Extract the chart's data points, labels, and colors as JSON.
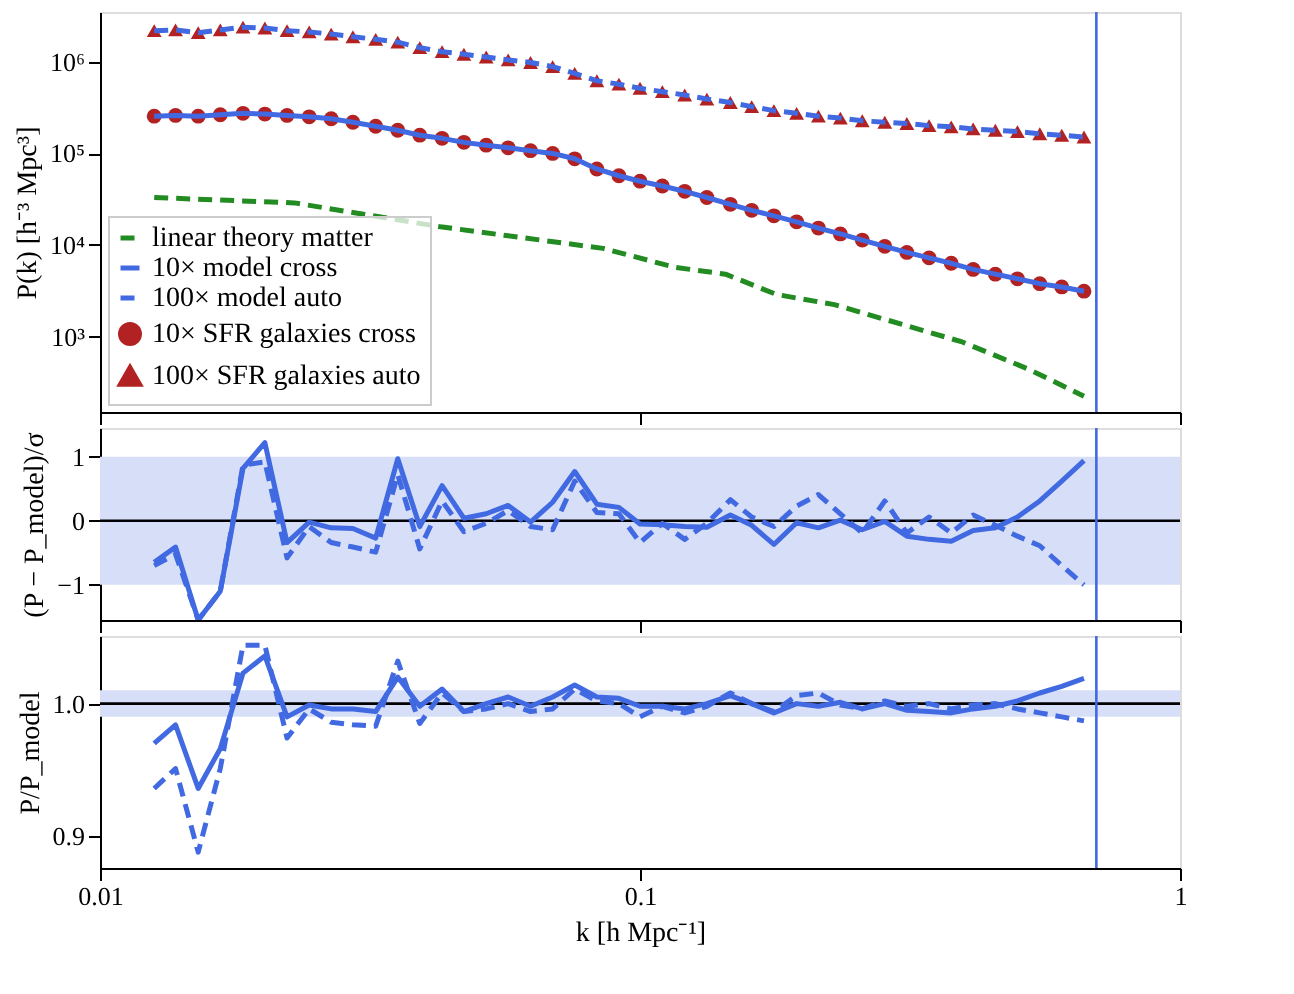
{
  "chart_data": [
    {
      "type": "line",
      "ylabel": "P(k) [h⁻³ Mpc³]",
      "log": "xy",
      "legend": "bottom left",
      "tick_labels": "y",
      "xlim": [
        0.01,
        1
      ],
      "xticks": [
        0.01,
        0.1,
        1
      ],
      "ylim": [
        150,
        3500000
      ],
      "yticks": [
        {
          "value": 1000,
          "label": "10³"
        },
        {
          "value": 10000,
          "label": "10⁴"
        },
        {
          "value": 100000,
          "label": "10⁵"
        },
        {
          "value": 1000000,
          "label": "10⁶"
        }
      ],
      "x": [
        0.0126,
        0.0138,
        0.0152,
        0.0167,
        0.0184,
        0.0202,
        0.0222,
        0.0244,
        0.0268,
        0.0294,
        0.0324,
        0.0356,
        0.0391,
        0.043,
        0.0472,
        0.0519,
        0.057,
        0.0627,
        0.0689,
        0.0757,
        0.0832,
        0.0914,
        0.1,
        0.11,
        0.121,
        0.133,
        0.147,
        0.161,
        0.177,
        0.195,
        0.214,
        0.235,
        0.258,
        0.284,
        0.312,
        0.343,
        0.377,
        0.414,
        0.455,
        0.5,
        0.55,
        0.604,
        0.664
      ],
      "series": [
        {
          "name": "linear theory matter",
          "color": "#228b22",
          "line_style": "dashed",
          "x": [
            0.0126,
            0.0229,
            0.0427,
            0.0855,
            0.116,
            0.144,
            0.179,
            0.229,
            0.308,
            0.395,
            0.524,
            0.664
          ],
          "values": [
            33000,
            28800,
            15800,
            9180,
            5700,
            4800,
            2880,
            2230,
            1340,
            873,
            441,
            223
          ]
        },
        {
          "name": "10× model cross",
          "color": "#4169e1",
          "line_style": "solid",
          "values": [
            255000.0,
            260000.0,
            255000.0,
            264000.0,
            274000.0,
            269000.0,
            260000.0,
            251000.0,
            239000.0,
            219000.0,
            198000.0,
            179000.0,
            158000.0,
            146000.0,
            132000.0,
            123000.0,
            115000.0,
            107000.0,
            100000.0,
            87300.0,
            67600.0,
            57000.0,
            49700.0,
            44100.0,
            38500.0,
            33000.0,
            27800.0,
            23900.0,
            20800.0,
            17900.0,
            15300.0,
            13200.0,
            11300.0,
            9660.0,
            8300.0,
            7230.0,
            6310.0,
            5410.0,
            4800.0,
            4270.0,
            3780.0,
            3480.0,
            3130.0
          ]
        },
        {
          "name": "100× model auto",
          "color": "#4169e1",
          "line_style": "dashed",
          "values": [
            2190000.0,
            2230000.0,
            2080000.0,
            2230000.0,
            2390000.0,
            2340000.0,
            2190000.0,
            2120000.0,
            2010000.0,
            1880000.0,
            1760000.0,
            1640000.0,
            1430000.0,
            1290000.0,
            1210000.0,
            1130000.0,
            1050000.0,
            984000.0,
            887000.0,
            748000.0,
            621000.0,
            570000.0,
            514000.0,
            472000.0,
            434000.0,
            392000.0,
            360000.0,
            324000.0,
            293000.0,
            274000.0,
            255000.0,
            243000.0,
            227000.0,
            219000.0,
            212000.0,
            201000.0,
            195000.0,
            185000.0,
            179000.0,
            173000.0,
            164000.0,
            158000.0,
            151000.0
          ]
        },
        {
          "name": "10× SFR galaxies cross",
          "type": "scatter",
          "marker": "circle",
          "color": "#b22222",
          "values": [
            255000.0,
            260000.0,
            255000.0,
            264000.0,
            274000.0,
            269000.0,
            260000.0,
            251000.0,
            239000.0,
            219000.0,
            198000.0,
            179000.0,
            158000.0,
            146000.0,
            132000.0,
            123000.0,
            115000.0,
            107000.0,
            100000.0,
            87300.0,
            67600.0,
            57000.0,
            49700.0,
            44100.0,
            38500.0,
            33000.0,
            27800.0,
            23900.0,
            20800.0,
            17900.0,
            15300.0,
            13200.0,
            11300.0,
            9660.0,
            8300.0,
            7230.0,
            6310.0,
            5410.0,
            4800.0,
            4270.0,
            3780.0,
            3480.0,
            3130.0
          ]
        },
        {
          "name": "100× SFR galaxies auto",
          "type": "scatter",
          "marker": "triangle",
          "color": "#b22222",
          "values": [
            2190000.0,
            2230000.0,
            2080000.0,
            2230000.0,
            2390000.0,
            2340000.0,
            2190000.0,
            2120000.0,
            2010000.0,
            1880000.0,
            1760000.0,
            1640000.0,
            1430000.0,
            1290000.0,
            1210000.0,
            1130000.0,
            1050000.0,
            984000.0,
            887000.0,
            748000.0,
            621000.0,
            570000.0,
            514000.0,
            472000.0,
            434000.0,
            392000.0,
            360000.0,
            324000.0,
            293000.0,
            274000.0,
            255000.0,
            243000.0,
            227000.0,
            219000.0,
            212000.0,
            201000.0,
            195000.0,
            185000.0,
            179000.0,
            173000.0,
            164000.0,
            158000.0,
            151000.0
          ]
        }
      ],
      "ref_lines": [
        {
          "axis": "x",
          "value": 0.7,
          "color": "#4169e1"
        }
      ]
    },
    {
      "type": "line",
      "ylabel": "(P − P_model)/σ",
      "log": "x",
      "tick_labels": "y",
      "xlim": [
        0.01,
        1
      ],
      "xticks": [
        0.01,
        0.1,
        1
      ],
      "ylim": [
        -1.55,
        1.45
      ],
      "yticks": [
        {
          "value": -1,
          "label": "−1"
        },
        0,
        1
      ],
      "x": [
        0.0126,
        0.0138,
        0.0152,
        0.0167,
        0.0184,
        0.0202,
        0.0222,
        0.0244,
        0.0268,
        0.0294,
        0.0324,
        0.0356,
        0.0391,
        0.043,
        0.0472,
        0.0519,
        0.057,
        0.0627,
        0.0689,
        0.0757,
        0.0832,
        0.0914,
        0.1,
        0.11,
        0.121,
        0.133,
        0.147,
        0.161,
        0.177,
        0.195,
        0.214,
        0.235,
        0.258,
        0.284,
        0.312,
        0.343,
        0.377,
        0.414,
        0.455,
        0.5,
        0.55,
        0.604,
        0.664
      ],
      "series": [
        {
          "color": "#4169e1",
          "line_style": "solid",
          "values": [
            -0.65,
            -0.41,
            -1.55,
            -1.1,
            0.82,
            1.22,
            -0.34,
            -0.02,
            -0.11,
            -0.12,
            -0.27,
            0.97,
            -0.09,
            0.55,
            0.04,
            0.11,
            0.24,
            -0.02,
            0.29,
            0.77,
            0.26,
            0.21,
            -0.05,
            -0.06,
            -0.09,
            -0.1,
            0.09,
            -0.07,
            -0.37,
            -0.03,
            -0.11,
            0.01,
            -0.14,
            -0.01,
            -0.24,
            -0.29,
            -0.32,
            -0.15,
            -0.11,
            0.06,
            0.31,
            0.62,
            0.94
          ]
        },
        {
          "color": "#4169e1",
          "line_style": "dashed",
          "values": [
            -0.7,
            -0.52,
            -1.55,
            -1.1,
            0.87,
            0.92,
            -0.58,
            -0.09,
            -0.34,
            -0.41,
            -0.49,
            0.72,
            -0.44,
            0.31,
            -0.17,
            -0.04,
            0.16,
            -0.09,
            -0.14,
            0.62,
            0.13,
            0.11,
            -0.34,
            -0.04,
            -0.29,
            -0.04,
            0.33,
            0.06,
            -0.09,
            0.23,
            0.41,
            0.11,
            -0.19,
            0.31,
            -0.19,
            0.06,
            -0.19,
            0.09,
            -0.07,
            -0.24,
            -0.39,
            -0.7,
            -1.0
          ]
        }
      ],
      "bands": [
        {
          "axis": "y",
          "from": -1,
          "to": 1,
          "color": "#d6dff7"
        }
      ],
      "ref_lines": [
        {
          "axis": "y",
          "value": 0,
          "color": "#000000"
        },
        {
          "axis": "x",
          "value": 0.7,
          "color": "#4169e1"
        }
      ]
    },
    {
      "type": "line",
      "xlabel": "k [h Mpc⁻¹]",
      "ylabel": "P/P_model",
      "log": "x",
      "xlim": [
        0.01,
        1
      ],
      "xticks": [
        0.01,
        0.1,
        1
      ],
      "ylim": [
        0.876,
        1.051
      ],
      "yticks": [
        0.9,
        {
          "value": 1,
          "label": "1.0"
        }
      ],
      "x": [
        0.0126,
        0.0138,
        0.0152,
        0.0167,
        0.0184,
        0.0202,
        0.0222,
        0.0244,
        0.0268,
        0.0294,
        0.0324,
        0.0356,
        0.0391,
        0.043,
        0.0472,
        0.0519,
        0.057,
        0.0627,
        0.0689,
        0.0757,
        0.0832,
        0.0914,
        0.1,
        0.11,
        0.121,
        0.133,
        0.147,
        0.161,
        0.177,
        0.195,
        0.214,
        0.235,
        0.258,
        0.284,
        0.312,
        0.343,
        0.377,
        0.414,
        0.455,
        0.5,
        0.55,
        0.604,
        0.664
      ],
      "series": [
        {
          "color": "#4169e1",
          "line_style": "solid",
          "values": [
            0.97,
            0.984,
            0.936,
            0.966,
            1.023,
            1.036,
            0.99,
            0.999,
            0.996,
            0.996,
            0.994,
            1.02,
            0.998,
            1.011,
            0.994,
            1.0,
            1.005,
            0.998,
            1.005,
            1.014,
            1.005,
            1.004,
            0.998,
            0.998,
            0.996,
            1.0,
            1.006,
            1.0,
            0.993,
            1.0,
            0.998,
            1.001,
            0.996,
            1.0,
            0.995,
            0.994,
            0.993,
            0.996,
            0.998,
            1.002,
            1.008,
            1.013,
            1.019
          ]
        },
        {
          "color": "#4169e1",
          "line_style": "dashed",
          "values": [
            0.936,
            0.951,
            0.888,
            0.951,
            1.044,
            1.044,
            0.974,
            0.996,
            0.986,
            0.984,
            0.983,
            1.032,
            0.985,
            1.008,
            0.994,
            0.996,
            1.0,
            0.994,
            0.996,
            1.011,
            1.002,
            1.0,
            0.99,
            0.998,
            0.993,
            0.998,
            1.008,
            1.0,
            0.994,
            1.006,
            1.008,
            0.999,
            0.996,
            1.002,
            0.998,
            1.0,
            0.996,
            0.999,
            1.0,
            0.996,
            0.993,
            0.99,
            0.987
          ]
        }
      ],
      "bands": [
        {
          "axis": "y",
          "from": 0.99,
          "to": 1.01,
          "color": "#d6dff7"
        }
      ],
      "ref_lines": [
        {
          "axis": "y",
          "value": 1,
          "color": "#000000"
        },
        {
          "axis": "x",
          "value": 0.7,
          "color": "#4169e1"
        }
      ]
    }
  ]
}
